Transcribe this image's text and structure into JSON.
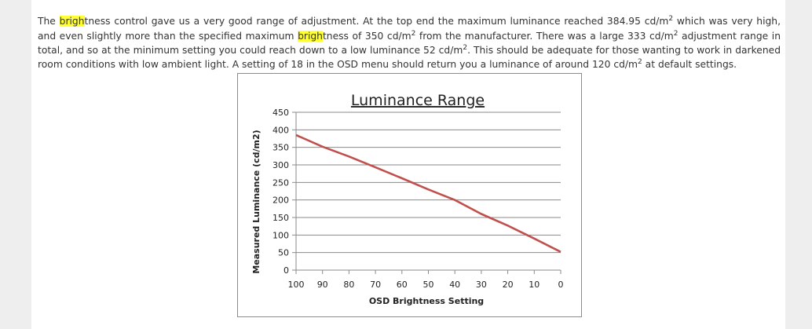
{
  "article": {
    "s1a": "The ",
    "s1h": "brigh",
    "s1b": "tness control gave us a very good range of adjustment. At the top end the maximum luminance reached 384.95 cd/m",
    "s1sup": "2",
    "s1c": " which was very high, and even slightly more than the specified maximum ",
    "s2h": "brigh",
    "s2b": "tness of 350 cd/m",
    "s2sup": "2",
    "s2c": " from the manufacturer. There was a large 333 cd/m",
    "s2sup2": "2",
    "s2d": " adjustment range in total, and so at the minimum setting you could reach down to a low luminance 52 cd/m",
    "s2sup3": "2",
    "s2e": ". This should be adequate for those wanting to work in darkened room conditions with low ambient light. A setting of 18 in the OSD menu should return you a luminance of around 120 cd/m",
    "s2sup4": "2",
    "s2f": " at default settings."
  },
  "chart_data": {
    "type": "line",
    "title": "Luminance Range",
    "xlabel": "OSD Brightness Setting",
    "ylabel": "Measured Luminance (cd/m2)",
    "x_ticks": [
      "100",
      "90",
      "80",
      "70",
      "60",
      "50",
      "40",
      "30",
      "20",
      "10",
      "0"
    ],
    "y_ticks": [
      "0",
      "50",
      "100",
      "150",
      "200",
      "250",
      "300",
      "350",
      "400",
      "450"
    ],
    "xlim": [
      100,
      0
    ],
    "ylim": [
      0,
      450
    ],
    "grid": true,
    "series": [
      {
        "name": "Luminance",
        "color": "#c0504d",
        "x": [
          100,
          90,
          80,
          70,
          60,
          50,
          40,
          30,
          20,
          10,
          0
        ],
        "y": [
          385,
          352,
          324,
          293,
          262,
          230,
          200,
          160,
          127,
          90,
          52
        ]
      }
    ]
  }
}
